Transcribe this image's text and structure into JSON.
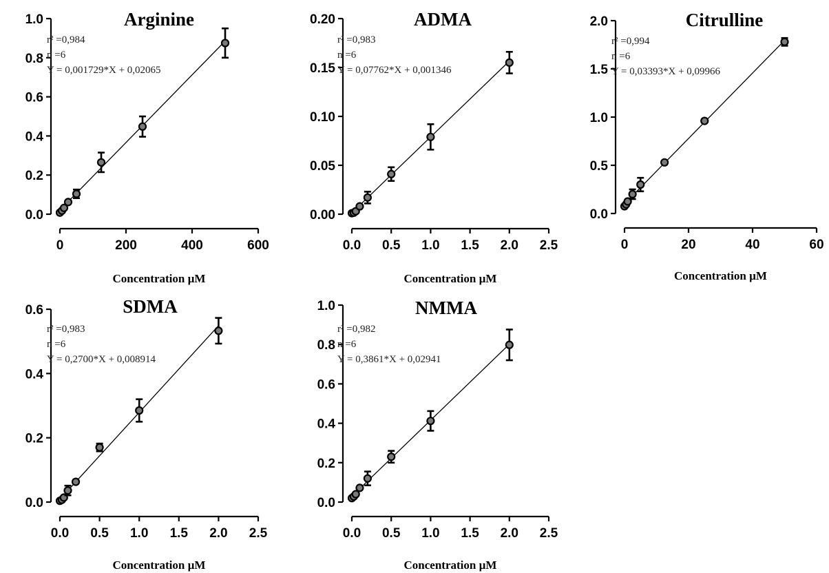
{
  "chart_data": [
    {
      "type": "scatter",
      "title": "Arginine",
      "xlabel": "Concentration µM",
      "ylabel": "",
      "xlim": [
        0,
        600
      ],
      "ylim": [
        0,
        1.0
      ],
      "x_ticks": [
        "0",
        "200",
        "400",
        "600"
      ],
      "y_ticks": [
        "0.0",
        "0.2",
        "0.4",
        "0.6",
        "0.8",
        "1.0"
      ],
      "annotations": [
        "r² =0,984",
        "n =6",
        "Y = 0,001729*X + 0,02065"
      ],
      "fit": {
        "slope": 0.001729,
        "intercept": 0.02065
      },
      "points": [
        {
          "x": 0,
          "y": 0.008,
          "err": 0.004
        },
        {
          "x": 6.25,
          "y": 0.018,
          "err": 0.006
        },
        {
          "x": 12.5,
          "y": 0.032,
          "err": 0.008
        },
        {
          "x": 25,
          "y": 0.062,
          "err": 0.015
        },
        {
          "x": 50,
          "y": 0.104,
          "err": 0.022
        },
        {
          "x": 125,
          "y": 0.265,
          "err": 0.05
        },
        {
          "x": 250,
          "y": 0.448,
          "err": 0.052
        },
        {
          "x": 500,
          "y": 0.875,
          "err": 0.075
        }
      ]
    },
    {
      "type": "scatter",
      "title": "ADMA",
      "xlabel": "Concentration µM",
      "ylabel": "",
      "xlim": [
        0,
        2.5
      ],
      "ylim": [
        0,
        0.2
      ],
      "x_ticks": [
        "0.0",
        "0.5",
        "1.0",
        "1.5",
        "2.0",
        "2.5"
      ],
      "y_ticks": [
        "0.00",
        "0.05",
        "0.10",
        "0.15",
        "0.20"
      ],
      "annotations": [
        "r² =0,983",
        "n =6",
        "Y = 0,07762*X + 0,001346"
      ],
      "fit": {
        "slope": 0.07762,
        "intercept": 0.001346
      },
      "points": [
        {
          "x": 0.0,
          "y": 0.001,
          "err": 0.0005
        },
        {
          "x": 0.025,
          "y": 0.0015,
          "err": 0.0008
        },
        {
          "x": 0.05,
          "y": 0.003,
          "err": 0.001
        },
        {
          "x": 0.1,
          "y": 0.008,
          "err": 0.002
        },
        {
          "x": 0.2,
          "y": 0.017,
          "err": 0.006
        },
        {
          "x": 0.5,
          "y": 0.041,
          "err": 0.007
        },
        {
          "x": 1.0,
          "y": 0.079,
          "err": 0.013
        },
        {
          "x": 2.0,
          "y": 0.155,
          "err": 0.011
        }
      ]
    },
    {
      "type": "scatter",
      "title": "Citrulline",
      "xlabel": "Concentration µM",
      "ylabel": "",
      "xlim": [
        0,
        60
      ],
      "ylim": [
        0,
        2.0
      ],
      "x_ticks": [
        "0",
        "20",
        "40",
        "60"
      ],
      "y_ticks": [
        "0.0",
        "0.5",
        "1.0",
        "1.5",
        "2.0"
      ],
      "annotations": [
        "r² =0,994",
        "n =6",
        "Y = 0,03393*X + 0,09966"
      ],
      "fit": {
        "slope": 0.03393,
        "intercept": 0.09966
      },
      "points": [
        {
          "x": 0.0,
          "y": 0.075,
          "err": 0.01
        },
        {
          "x": 0.5,
          "y": 0.095,
          "err": 0.012
        },
        {
          "x": 1.0,
          "y": 0.125,
          "err": 0.02
        },
        {
          "x": 2.5,
          "y": 0.2,
          "err": 0.05
        },
        {
          "x": 5.0,
          "y": 0.3,
          "err": 0.07
        },
        {
          "x": 12.5,
          "y": 0.53,
          "err": 0.02
        },
        {
          "x": 25.0,
          "y": 0.96,
          "err": 0.03
        },
        {
          "x": 50.0,
          "y": 1.78,
          "err": 0.04
        }
      ]
    },
    {
      "type": "scatter",
      "title": "SDMA",
      "xlabel": "Concentration µM",
      "ylabel": "",
      "xlim": [
        0,
        2.5
      ],
      "ylim": [
        0,
        0.6
      ],
      "x_ticks": [
        "0.0",
        "0.5",
        "1.0",
        "1.5",
        "2.0",
        "2.5"
      ],
      "y_ticks": [
        "0.0",
        "0.2",
        "0.4",
        "0.6"
      ],
      "annotations": [
        "r² =0,983",
        "n =6",
        "Y = 0,2700*X + 0,008914"
      ],
      "fit": {
        "slope": 0.27,
        "intercept": 0.008914
      },
      "points": [
        {
          "x": 0.0,
          "y": 0.004,
          "err": 0.002
        },
        {
          "x": 0.025,
          "y": 0.007,
          "err": 0.003
        },
        {
          "x": 0.05,
          "y": 0.014,
          "err": 0.005
        },
        {
          "x": 0.1,
          "y": 0.036,
          "err": 0.015
        },
        {
          "x": 0.2,
          "y": 0.063,
          "err": 0.008
        },
        {
          "x": 0.5,
          "y": 0.17,
          "err": 0.012
        },
        {
          "x": 1.0,
          "y": 0.285,
          "err": 0.035
        },
        {
          "x": 2.0,
          "y": 0.533,
          "err": 0.04
        }
      ]
    },
    {
      "type": "scatter",
      "title": "NMMA",
      "xlabel": "Concentration µM",
      "ylabel": "",
      "xlim": [
        0,
        2.5
      ],
      "ylim": [
        0,
        1.0
      ],
      "x_ticks": [
        "0.0",
        "0.5",
        "1.0",
        "1.5",
        "2.0",
        "2.5"
      ],
      "y_ticks": [
        "0.0",
        "0.2",
        "0.4",
        "0.6",
        "0.8",
        "1.0"
      ],
      "annotations": [
        "r² =0,982",
        "n =6",
        "Y = 0,3861*X + 0,02941"
      ],
      "fit": {
        "slope": 0.3861,
        "intercept": 0.02941
      },
      "points": [
        {
          "x": 0.0,
          "y": 0.02,
          "err": 0.005
        },
        {
          "x": 0.025,
          "y": 0.028,
          "err": 0.006
        },
        {
          "x": 0.05,
          "y": 0.04,
          "err": 0.01
        },
        {
          "x": 0.1,
          "y": 0.072,
          "err": 0.015
        },
        {
          "x": 0.2,
          "y": 0.12,
          "err": 0.035
        },
        {
          "x": 0.5,
          "y": 0.23,
          "err": 0.03
        },
        {
          "x": 1.0,
          "y": 0.412,
          "err": 0.05
        },
        {
          "x": 2.0,
          "y": 0.798,
          "err": 0.078
        }
      ]
    }
  ]
}
